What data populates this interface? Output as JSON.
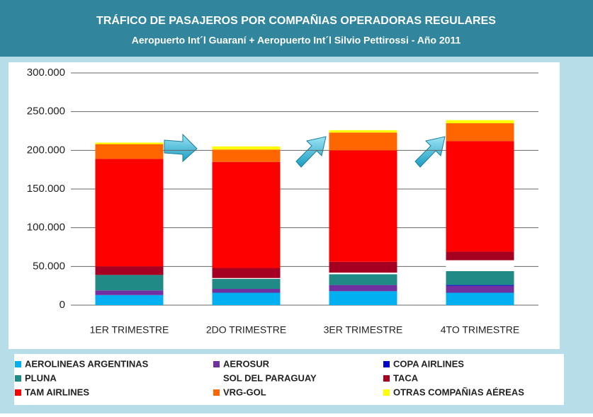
{
  "chart_data": {
    "type": "stacked_bar",
    "title": "TRÁFICO  DE PASAJEROS POR COMPAÑIAS OPERADORAS REGULARES",
    "subtitle": "Aeropuerto Int´l   Guaraní + Aeropuerto Int´l Silvio Pettirossi  -  Año 2011",
    "categories": [
      "1ER TRIMESTRE",
      "2DO TRIMESTRE",
      "3ER TRIMESTRE",
      "4TO  TRIMESTRE"
    ],
    "series": [
      {
        "name": "AEROLINEAS ARGENTINAS",
        "color": "#00b0f0",
        "values": [
          13000,
          16000,
          18000,
          16000
        ]
      },
      {
        "name": "AEROSUR",
        "color": "#7030a0",
        "values": [
          6000,
          5000,
          8000,
          9000
        ]
      },
      {
        "name": "COPA AIRLINES",
        "color": "#0000cc",
        "values": [
          0,
          0,
          0,
          1000
        ]
      },
      {
        "name": "PLUNA",
        "color": "#1f8a86",
        "values": [
          20000,
          13000,
          14000,
          18000
        ]
      },
      {
        "name": "SOL DEL PARAGUAY",
        "color": "#ffffff",
        "values": [
          0,
          1000,
          2000,
          14000
        ]
      },
      {
        "name": "TACA",
        "color": "#a50021",
        "values": [
          11000,
          13000,
          14000,
          11000
        ]
      },
      {
        "name": "TAM AIRLINES",
        "color": "#ff0000",
        "values": [
          139000,
          137000,
          144000,
          143000
        ]
      },
      {
        "name": "VRG-GOL",
        "color": "#ff6600",
        "values": [
          19000,
          16000,
          23000,
          23000
        ]
      },
      {
        "name": "OTRAS  COMPAÑIAS  AÉREAS",
        "color": "#ffff00",
        "values": [
          2000,
          4000,
          3000,
          4000
        ]
      }
    ],
    "ylim": [
      0,
      300000
    ],
    "yticks": [
      0,
      {
        "value": 50000,
        "label": "50.000"
      },
      {
        "value": 100000,
        "label": "100.000"
      },
      {
        "value": 150000,
        "label": "150.000"
      },
      {
        "value": 200000,
        "label": "200.000"
      },
      {
        "value": 250000,
        "label": "250.000"
      },
      {
        "value": 300000,
        "label": "300.000"
      }
    ],
    "grid": true
  }
}
